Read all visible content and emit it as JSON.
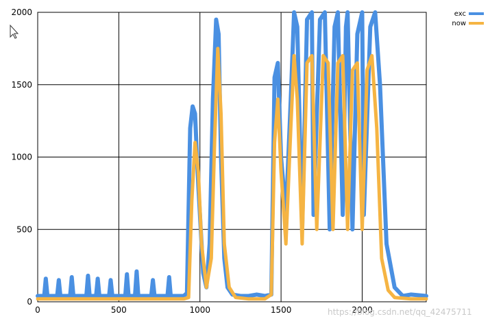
{
  "chart_data": {
    "type": "line",
    "title": "",
    "xlabel": "",
    "ylabel": "",
    "xlim": [
      0,
      2395
    ],
    "ylim": [
      0,
      2000
    ],
    "x_ticks": [
      0,
      500,
      1000,
      1500,
      2000
    ],
    "x_tick_labels": [
      "0",
      "500",
      "1000",
      "1500",
      "2000"
    ],
    "y_ticks": [
      0,
      500,
      1000,
      1500,
      2000
    ],
    "y_tick_labels": [
      "0",
      "500",
      "1000",
      "1500",
      "2000"
    ],
    "grid": true,
    "legend_position": "top-right",
    "series": [
      {
        "name": "exc",
        "color": "#4A90E2",
        "x": [
          0,
          40,
          50,
          60,
          120,
          130,
          140,
          200,
          210,
          220,
          300,
          310,
          320,
          360,
          370,
          380,
          440,
          450,
          460,
          540,
          550,
          560,
          600,
          610,
          620,
          700,
          710,
          720,
          800,
          810,
          820,
          900,
          920,
          940,
          955,
          970,
          990,
          1020,
          1040,
          1060,
          1080,
          1100,
          1115,
          1130,
          1150,
          1170,
          1200,
          1250,
          1300,
          1350,
          1400,
          1440,
          1460,
          1480,
          1500,
          1530,
          1560,
          1580,
          1600,
          1630,
          1660,
          1690,
          1700,
          1740,
          1770,
          1800,
          1830,
          1850,
          1880,
          1900,
          1910,
          1940,
          1970,
          2000,
          2010,
          2050,
          2080,
          2110,
          2150,
          2200,
          2250,
          2300,
          2395
        ],
        "y": [
          40,
          40,
          160,
          40,
          40,
          150,
          40,
          40,
          170,
          40,
          40,
          180,
          40,
          40,
          160,
          40,
          40,
          150,
          40,
          40,
          190,
          40,
          40,
          210,
          40,
          40,
          150,
          40,
          40,
          170,
          40,
          40,
          60,
          1200,
          1350,
          1300,
          800,
          200,
          100,
          400,
          1400,
          1950,
          1850,
          1000,
          300,
          100,
          50,
          40,
          40,
          50,
          40,
          50,
          1550,
          1650,
          1000,
          600,
          1400,
          2000,
          1900,
          500,
          1950,
          2000,
          600,
          1950,
          2000,
          500,
          1900,
          2000,
          600,
          1900,
          2000,
          500,
          1850,
          2000,
          600,
          1900,
          2000,
          1500,
          400,
          100,
          40,
          50,
          40
        ]
      },
      {
        "name": "now",
        "color": "#F5B443",
        "x": [
          0,
          100,
          200,
          300,
          400,
          500,
          600,
          700,
          800,
          900,
          930,
          950,
          970,
          990,
          1010,
          1040,
          1070,
          1090,
          1110,
          1130,
          1150,
          1180,
          1220,
          1300,
          1400,
          1440,
          1460,
          1480,
          1500,
          1530,
          1560,
          1580,
          1600,
          1630,
          1660,
          1690,
          1720,
          1760,
          1790,
          1820,
          1850,
          1880,
          1910,
          1940,
          1970,
          2000,
          2030,
          2060,
          2090,
          2120,
          2160,
          2200,
          2300,
          2395
        ],
        "y": [
          20,
          20,
          20,
          20,
          20,
          20,
          20,
          20,
          20,
          20,
          30,
          700,
          1100,
          900,
          400,
          100,
          300,
          1100,
          1750,
          1300,
          400,
          100,
          30,
          20,
          20,
          50,
          1100,
          1400,
          900,
          400,
          1200,
          1700,
          1400,
          400,
          1650,
          1700,
          500,
          1700,
          1650,
          500,
          1650,
          1700,
          500,
          1600,
          1650,
          500,
          1600,
          1700,
          1200,
          300,
          80,
          30,
          20,
          20
        ]
      }
    ]
  },
  "watermark": "https://blog.csdn.net/qq_42475711"
}
